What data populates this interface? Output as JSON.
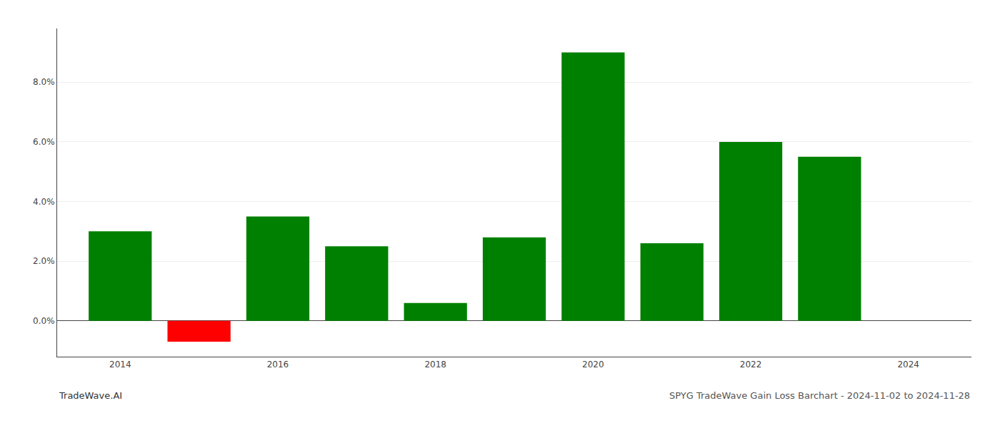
{
  "chart_data": {
    "type": "bar",
    "x": [
      2014,
      2015,
      2016,
      2017,
      2018,
      2019,
      2020,
      2021,
      2022,
      2023
    ],
    "values": [
      0.03,
      -0.007,
      0.035,
      0.025,
      0.006,
      0.028,
      0.09,
      0.026,
      0.06,
      0.055
    ],
    "colors": [
      "#008000",
      "#ff0000",
      "#008000",
      "#008000",
      "#008000",
      "#008000",
      "#008000",
      "#008000",
      "#008000",
      "#008000"
    ],
    "xlim": [
      2013.2,
      2024.8
    ],
    "xticks": [
      2014,
      2016,
      2018,
      2020,
      2022,
      2024
    ],
    "ylim": [
      -0.012,
      0.098
    ],
    "yticks": [
      {
        "value": 0.0,
        "label": "0.0%"
      },
      {
        "value": 0.02,
        "label": "2.0%"
      },
      {
        "value": 0.04,
        "label": "4.0%"
      },
      {
        "value": 0.06,
        "label": "6.0%"
      },
      {
        "value": 0.08,
        "label": "8.0%"
      }
    ],
    "grid": true,
    "annotations": [
      "TradeWave.AI",
      "SPYG TradeWave Gain Loss Barchart - 2024-11-02 to 2024-11-28"
    ]
  }
}
